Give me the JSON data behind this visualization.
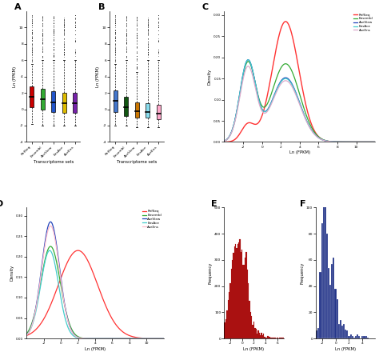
{
  "boxplot_A": {
    "categories": [
      "RefSeq",
      "Ensembl",
      "AceView",
      "EnsAce",
      "AceEns"
    ],
    "colors": [
      "#cc0000",
      "#33aa33",
      "#2255cc",
      "#ddbb00",
      "#7722aa"
    ],
    "ylabel": "Ln (FPKM)",
    "xlabel": "Transcriptome sets",
    "medians": [
      1.5,
      1.2,
      0.8,
      0.7,
      0.7
    ],
    "q1": [
      0.2,
      0.0,
      -0.3,
      -0.4,
      -0.4
    ],
    "q3": [
      2.8,
      2.5,
      2.2,
      2.0,
      2.0
    ],
    "whisker_lo": [
      -1.8,
      -2.0,
      -2.0,
      -2.0,
      -2.0
    ],
    "whisker_hi": [
      5.5,
      6.0,
      6.0,
      6.0,
      6.0
    ],
    "ylim": [
      -4,
      12
    ]
  },
  "boxplot_B": {
    "categories": [
      "RefSeq",
      "Ensembl",
      "AceView",
      "EnsAce",
      "AceEns"
    ],
    "colors": [
      "#4477cc",
      "#115511",
      "#cc7700",
      "#88ddee",
      "#ffaacc"
    ],
    "ylabel": "Ln (FPKM)",
    "xlabel": "Transcriptome sets",
    "medians": [
      1.0,
      0.2,
      -0.2,
      -0.3,
      -0.5
    ],
    "q1": [
      -0.3,
      -0.8,
      -1.0,
      -1.0,
      -1.2
    ],
    "q3": [
      2.3,
      1.5,
      0.8,
      0.7,
      0.5
    ],
    "whisker_lo": [
      -2.0,
      -2.0,
      -2.2,
      -2.2,
      -2.2
    ],
    "whisker_hi": [
      5.5,
      6.0,
      4.5,
      6.0,
      6.0
    ],
    "ylim": [
      -4,
      12
    ]
  },
  "density_C": {
    "legend_labels": [
      "RefSeq",
      "Ensembl",
      "AceView",
      "EnsAce",
      "AceEns"
    ],
    "colors": [
      "#ff3333",
      "#33aa33",
      "#2244bb",
      "#44cccc",
      "#ddaacc"
    ],
    "xlabel": "Ln (FPKM)",
    "ylabel": "Density",
    "xlim": [
      -4,
      12
    ],
    "ylim": [
      0,
      0.3
    ],
    "yticks": [
      0.0,
      0.05,
      0.1,
      0.15,
      0.2,
      0.25,
      0.3
    ],
    "xticks": [
      -2,
      0,
      2,
      4,
      6,
      8,
      10
    ]
  },
  "density_D": {
    "legend_labels": [
      "RefSeq",
      "Ensembl",
      "AceView",
      "EnsAce",
      "AceEns"
    ],
    "colors": [
      "#ff3333",
      "#33aa33",
      "#2244bb",
      "#44cccc",
      "#ffbbcc"
    ],
    "xlabel": "Ln (FPKM)",
    "ylabel": "Density",
    "xlim": [
      -4,
      12
    ],
    "ylim": [
      0,
      0.32
    ],
    "yticks": [
      0.0,
      0.05,
      0.1,
      0.15,
      0.2,
      0.25,
      0.3
    ],
    "xticks": [
      -2,
      0,
      2,
      4,
      6,
      8,
      10
    ]
  },
  "hist_E": {
    "color": "#aa1111",
    "xlabel": "Ln (FPKM)",
    "ylabel": "Frequency",
    "xlim": [
      -3,
      7
    ],
    "ylim": [
      0,
      500
    ],
    "yticks": [
      0,
      100,
      200,
      300,
      400,
      500
    ],
    "xticks": [
      -2,
      0,
      2,
      4,
      6
    ]
  },
  "hist_F": {
    "color": "#223388",
    "xlabel": "Ln (FPKM)",
    "ylabel": "Frequency",
    "xlim": [
      -3,
      6
    ],
    "ylim": [
      0,
      100
    ],
    "yticks": [
      0,
      20,
      40,
      60,
      80,
      100
    ],
    "xticks": [
      -2,
      0,
      2,
      4
    ]
  }
}
